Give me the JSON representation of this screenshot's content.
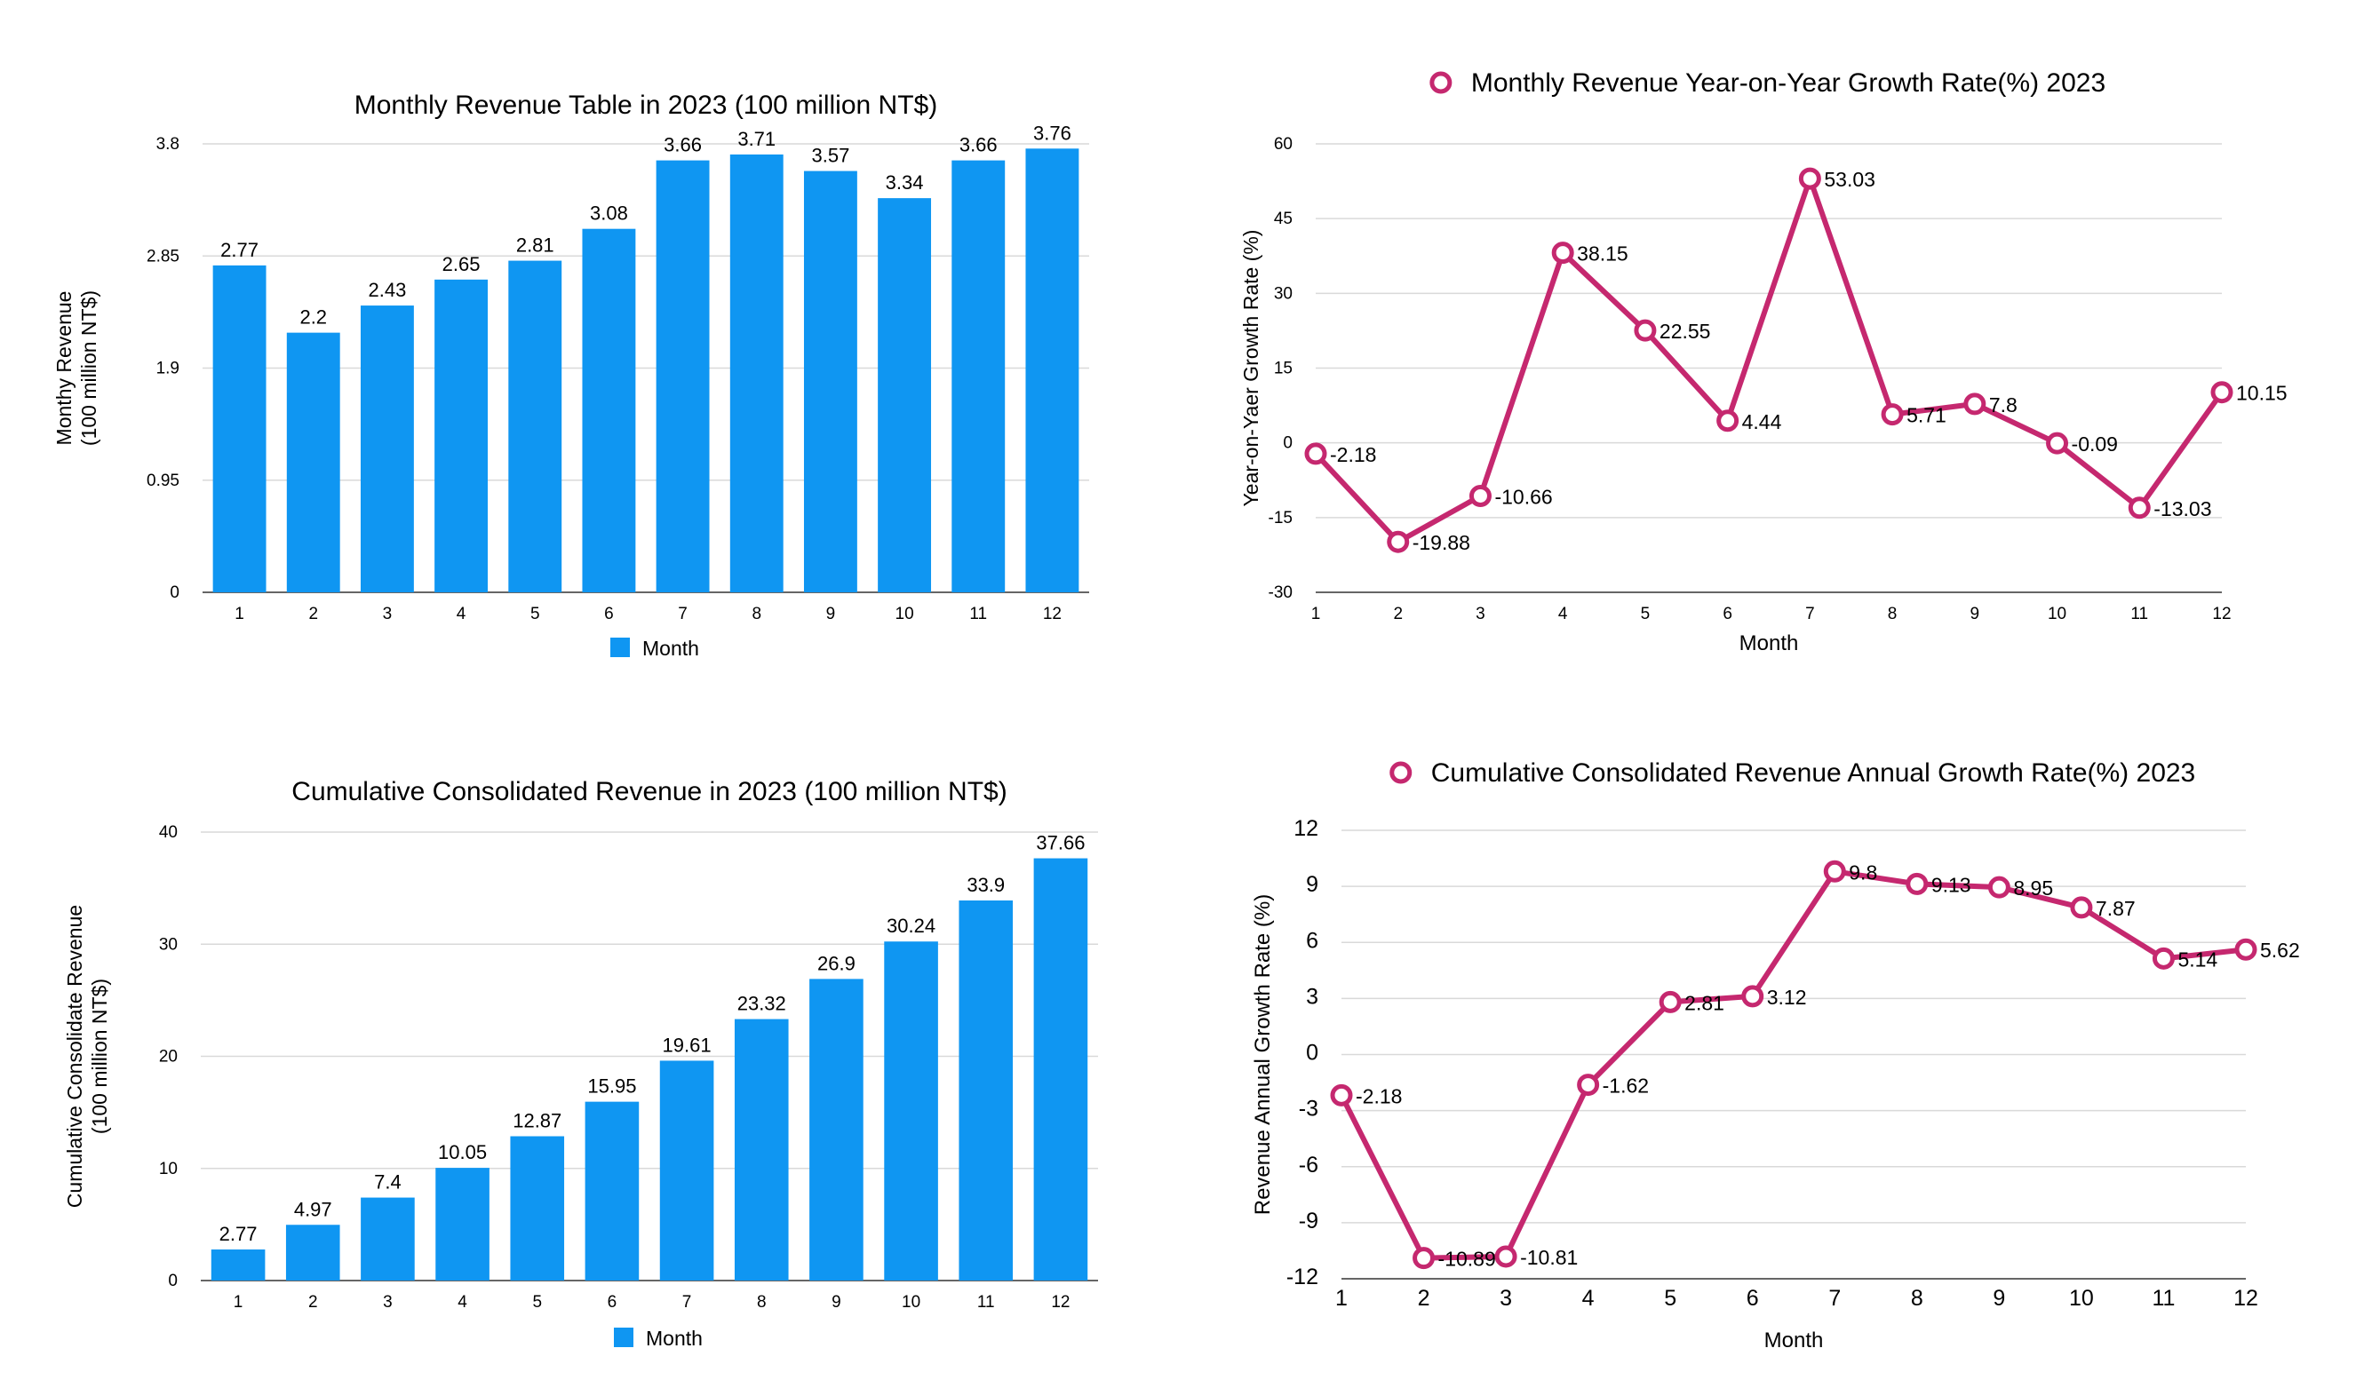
{
  "colors": {
    "bar": "#0f96f2",
    "line": "#c5286f",
    "grid": "#d9d9d9",
    "axis": "#666666"
  },
  "chart_data": [
    {
      "id": "c1",
      "type": "bar",
      "title": "Monthly Revenue Table in 2023 (100 million NT$)",
      "ylabel": [
        "Monthy Revenue",
        "(100 million NT$)"
      ],
      "xlabel": "",
      "legend": "Month",
      "legend_position": "bottom",
      "categories": [
        "1",
        "2",
        "3",
        "4",
        "5",
        "6",
        "7",
        "8",
        "9",
        "10",
        "11",
        "12"
      ],
      "values": [
        2.77,
        2.2,
        2.43,
        2.65,
        2.81,
        3.08,
        3.66,
        3.71,
        3.57,
        3.34,
        3.66,
        3.76
      ],
      "ylim": [
        0,
        3.8
      ],
      "yticks": [
        "0",
        "0.95",
        "1.9",
        "2.85",
        "3.8"
      ],
      "grid": true
    },
    {
      "id": "c2",
      "type": "line",
      "title": "Monthly Revenue Year-on-Year Growth Rate(%) 2023",
      "ylabel": [
        "Year-on-Yaer Growth Rate (%)"
      ],
      "xlabel": "Month",
      "legend_position": "top",
      "categories": [
        "1",
        "2",
        "3",
        "4",
        "5",
        "6",
        "7",
        "8",
        "9",
        "10",
        "11",
        "12"
      ],
      "values": [
        -2.18,
        -19.88,
        -10.66,
        38.15,
        22.55,
        4.44,
        53.03,
        5.71,
        7.8,
        -0.09,
        -13.03,
        10.15
      ],
      "ylim": [
        -30,
        60
      ],
      "yticks": [
        "-30",
        "-15",
        "0",
        "15",
        "30",
        "45",
        "60"
      ],
      "grid": true
    },
    {
      "id": "c3",
      "type": "bar",
      "title": "Cumulative Consolidated Revenue in 2023 (100 million NT$)",
      "ylabel": [
        "Cumulative Consolidate Revenue",
        "(100 million NT$)"
      ],
      "xlabel": "",
      "legend": "Month",
      "legend_position": "bottom",
      "categories": [
        "1",
        "2",
        "3",
        "4",
        "5",
        "6",
        "7",
        "8",
        "9",
        "10",
        "11",
        "12"
      ],
      "values": [
        2.77,
        4.97,
        7.4,
        10.05,
        12.87,
        15.95,
        19.61,
        23.32,
        26.9,
        30.24,
        33.9,
        37.66
      ],
      "ylim": [
        0,
        40
      ],
      "yticks": [
        "0",
        "10",
        "20",
        "30",
        "40"
      ],
      "grid": true
    },
    {
      "id": "c4",
      "type": "line",
      "title": "Cumulative Consolidated Revenue Annual Growth Rate(%) 2023",
      "ylabel": [
        "Revenue Annual Growth Rate (%)"
      ],
      "xlabel": "Month",
      "legend_position": "top",
      "categories": [
        "1",
        "2",
        "3",
        "4",
        "5",
        "6",
        "7",
        "8",
        "9",
        "10",
        "11",
        "12"
      ],
      "values": [
        -2.18,
        -10.89,
        -10.81,
        -1.62,
        2.81,
        3.12,
        9.8,
        9.13,
        8.95,
        7.87,
        5.14,
        5.62
      ],
      "ylim": [
        -12,
        12
      ],
      "yticks": [
        "-12",
        "-9",
        "-6",
        "-3",
        "0",
        "3",
        "6",
        "9",
        "12"
      ],
      "grid": true
    }
  ]
}
